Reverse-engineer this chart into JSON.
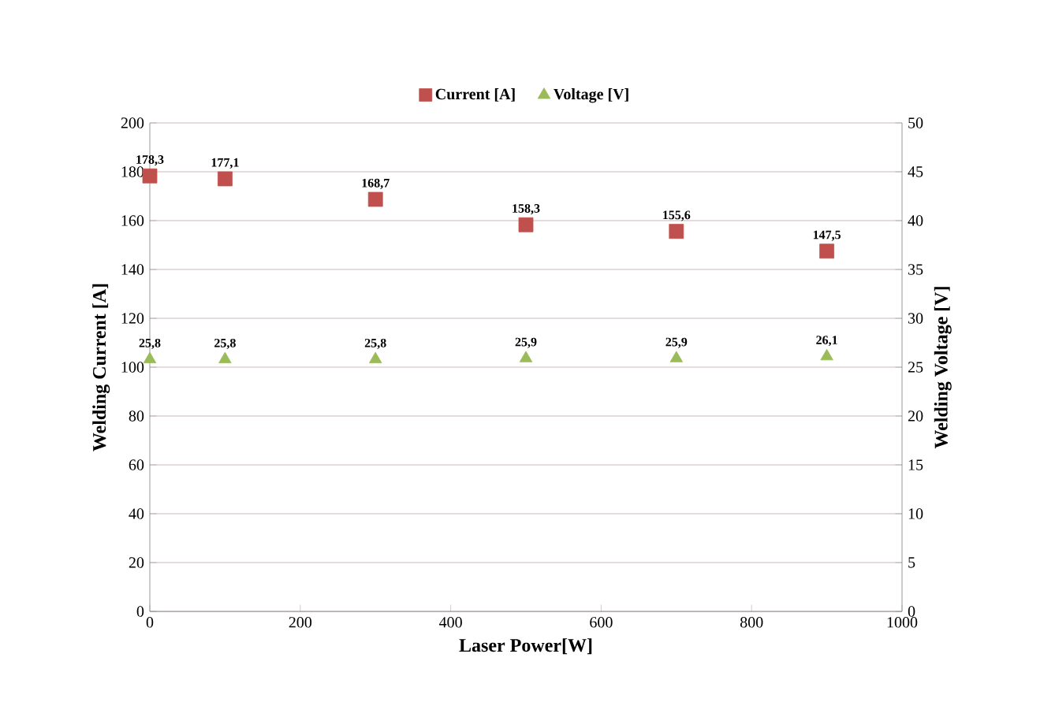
{
  "chart_data": {
    "type": "scatter",
    "xlabel": "Laser Power[W]",
    "ylabel": "Welding Current  [A]",
    "y2label": "Welding Voltage [V]",
    "series": [
      {
        "name": "Current [A]",
        "color": "#c0504d",
        "marker": "square",
        "x": [
          0,
          100,
          300,
          500,
          700,
          900
        ],
        "values": [
          178.3,
          177.1,
          168.7,
          158.3,
          155.6,
          147.5
        ],
        "value_labels": [
          "178,3",
          "177,1",
          "168,7",
          "158,3",
          "155,6",
          "147,5"
        ]
      },
      {
        "name": "Voltage [V]",
        "color": "#9bbb59",
        "marker": "triangle",
        "axis": "y2",
        "x": [
          0,
          100,
          300,
          500,
          700,
          900
        ],
        "values": [
          25.8,
          25.8,
          25.8,
          25.9,
          25.9,
          26.1
        ],
        "value_labels": [
          "25,8",
          "25,8",
          "25,8",
          "25,9",
          "25,9",
          "26,1"
        ]
      }
    ],
    "xlim": [
      0,
      1000
    ],
    "xticks": [
      0,
      200,
      400,
      600,
      800,
      1000
    ],
    "ylim": [
      0,
      200
    ],
    "yticks": [
      0,
      20,
      40,
      60,
      80,
      100,
      120,
      140,
      160,
      180,
      200
    ],
    "y2lim": [
      0,
      50
    ],
    "y2ticks": [
      0,
      5,
      10,
      15,
      20,
      25,
      30,
      35,
      40,
      45,
      50
    ],
    "grid": "y",
    "legend": "top"
  }
}
